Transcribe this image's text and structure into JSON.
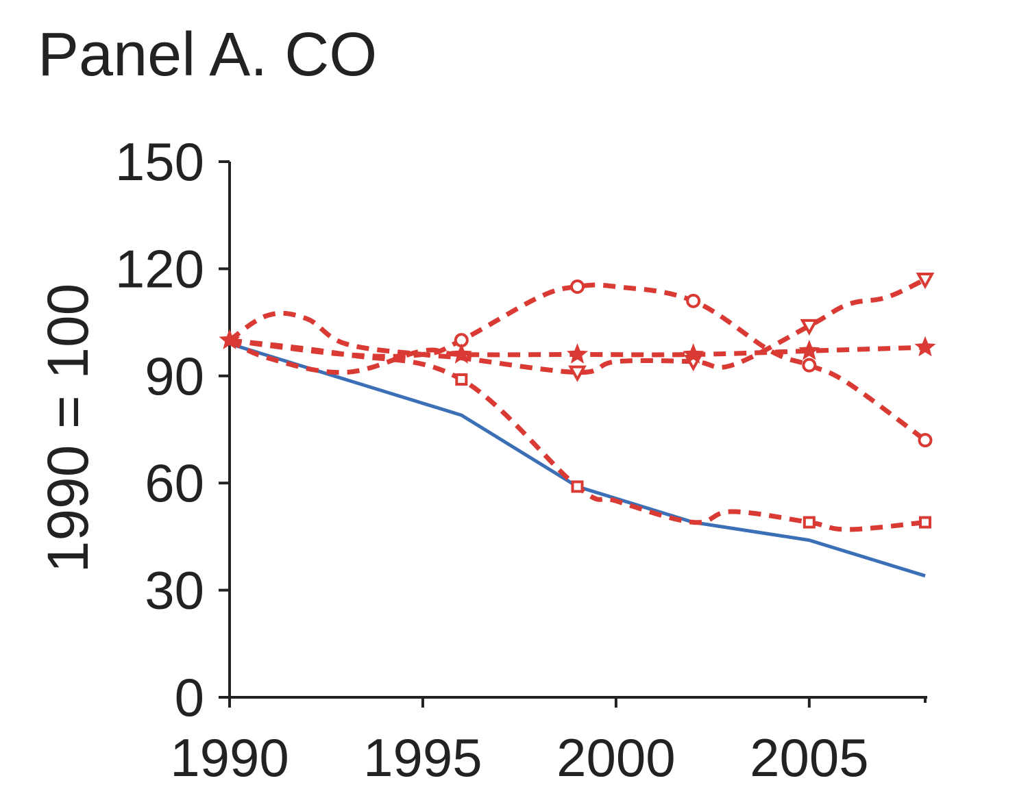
{
  "chart_data": {
    "type": "line",
    "title": "Panel A. CO",
    "xlabel": "",
    "ylabel": "1990 = 100",
    "xlim": [
      1990,
      2008
    ],
    "ylim": [
      0,
      150
    ],
    "x_ticks": [
      1990,
      1995,
      2000,
      2005
    ],
    "y_ticks": [
      0,
      30,
      60,
      90,
      120,
      150
    ],
    "grid": false,
    "legend": "none",
    "series": [
      {
        "style": "solid",
        "marker": "none",
        "color": "#3b6fb6",
        "points": [
          [
            1990,
            99
          ],
          [
            1996,
            79
          ],
          [
            1999,
            59
          ],
          [
            2002,
            49
          ],
          [
            2005,
            44
          ],
          [
            2008,
            34
          ]
        ]
      },
      {
        "style": "dashed",
        "marker": "square",
        "color": "#d93a34",
        "points": [
          [
            1990,
            100
          ],
          [
            1993,
            96
          ],
          [
            1996,
            89
          ],
          [
            1999,
            59
          ],
          [
            2000,
            55
          ],
          [
            2002,
            49
          ],
          [
            2003,
            52
          ],
          [
            2005,
            49
          ],
          [
            2006,
            47
          ],
          [
            2008,
            49
          ]
        ]
      },
      {
        "style": "dashed",
        "marker": "circle",
        "color": "#d93a34",
        "points": [
          [
            1990,
            100
          ],
          [
            1993,
            96
          ],
          [
            1995,
            96
          ],
          [
            1996,
            100
          ],
          [
            1998,
            112
          ],
          [
            1999,
            115
          ],
          [
            2000,
            115
          ],
          [
            2002,
            111
          ],
          [
            2004,
            97
          ],
          [
            2005,
            93
          ],
          [
            2006,
            88
          ],
          [
            2008,
            72
          ]
        ]
      },
      {
        "style": "dashed",
        "marker": "triangle-down",
        "color": "#d93a34",
        "points": [
          [
            1990,
            100
          ],
          [
            1991,
            107
          ],
          [
            1992,
            106
          ],
          [
            1993,
            99
          ],
          [
            1995,
            96
          ],
          [
            1996,
            95
          ],
          [
            1999,
            91
          ],
          [
            2000,
            94
          ],
          [
            2002,
            94
          ],
          [
            2003,
            93
          ],
          [
            2005,
            104
          ],
          [
            2006,
            110
          ],
          [
            2007,
            112
          ],
          [
            2008,
            117
          ]
        ]
      },
      {
        "style": "dashed",
        "marker": "star",
        "color": "#d93a34",
        "points": [
          [
            1990,
            100
          ],
          [
            1991,
            95
          ],
          [
            1993,
            91
          ],
          [
            1995,
            97
          ],
          [
            1996,
            96
          ],
          [
            1999,
            96
          ],
          [
            2002,
            96
          ],
          [
            2005,
            97
          ],
          [
            2008,
            98
          ]
        ]
      }
    ],
    "markers": [
      {
        "series": 1,
        "x": [
          1996,
          1999,
          2005,
          2008
        ]
      },
      {
        "series": 2,
        "x": [
          1996,
          1999,
          2002,
          2005,
          2008
        ]
      },
      {
        "series": 3,
        "x": [
          1999,
          2002,
          2005,
          2008
        ]
      },
      {
        "series": 4,
        "x": [
          1990,
          1996,
          1999,
          2002,
          2005,
          2008
        ]
      }
    ]
  }
}
